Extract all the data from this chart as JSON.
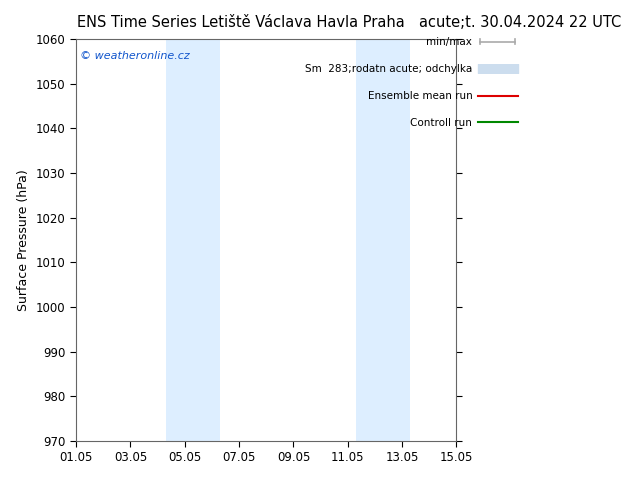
{
  "title_left": "ENS Time Series Letiště Václava Havla Praha",
  "title_right": "acute;t. 30.04.2024 22 UTC",
  "ylabel": "Surface Pressure (hPa)",
  "ylim": [
    970,
    1060
  ],
  "yticks": [
    970,
    980,
    990,
    1000,
    1010,
    1020,
    1030,
    1040,
    1050,
    1060
  ],
  "xtick_labels": [
    "01.05",
    "03.05",
    "05.05",
    "07.05",
    "09.05",
    "11.05",
    "13.05",
    "15.05"
  ],
  "xtick_positions": [
    0,
    2,
    4,
    6,
    8,
    10,
    12,
    14
  ],
  "shaded_bands": [
    {
      "x_start": 3.3,
      "x_end": 5.3
    },
    {
      "x_start": 10.3,
      "x_end": 12.3
    }
  ],
  "shaded_color": "#ddeeff",
  "background_color": "#ffffff",
  "watermark_text": "© weatheronline.cz",
  "watermark_color": "#1155cc",
  "legend_labels": [
    "min/max",
    "Sm  283;rodatn acute; odchylka",
    "Ensemble mean run",
    "Controll run"
  ],
  "legend_line_colors": [
    "#aaaaaa",
    "#ccddee",
    "#dd0000",
    "#008800"
  ],
  "grid_color": "#cccccc",
  "title_fontsize": 10.5,
  "axis_label_fontsize": 9,
  "tick_fontsize": 8.5,
  "figsize": [
    6.34,
    4.9
  ],
  "dpi": 100
}
